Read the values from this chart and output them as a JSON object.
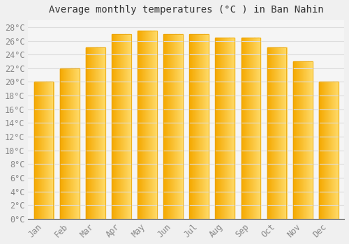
{
  "title": "Average monthly temperatures (°C ) in Ban Nahin",
  "months": [
    "Jan",
    "Feb",
    "Mar",
    "Apr",
    "May",
    "Jun",
    "Jul",
    "Aug",
    "Sep",
    "Oct",
    "Nov",
    "Dec"
  ],
  "values": [
    20.0,
    22.0,
    25.0,
    27.0,
    27.5,
    27.0,
    27.0,
    26.5,
    26.5,
    25.0,
    23.0,
    20.0
  ],
  "bar_color_dark": "#F5A800",
  "bar_color_light": "#FFD966",
  "bar_edge_color": "#E8A000",
  "background_color": "#F0F0F0",
  "plot_bg_color": "#F5F5F5",
  "grid_color": "#DDDDDD",
  "ylim": [
    0,
    29
  ],
  "ytick_step": 2,
  "title_fontsize": 10,
  "tick_fontsize": 8.5,
  "tick_color": "#888888",
  "font_family": "monospace"
}
